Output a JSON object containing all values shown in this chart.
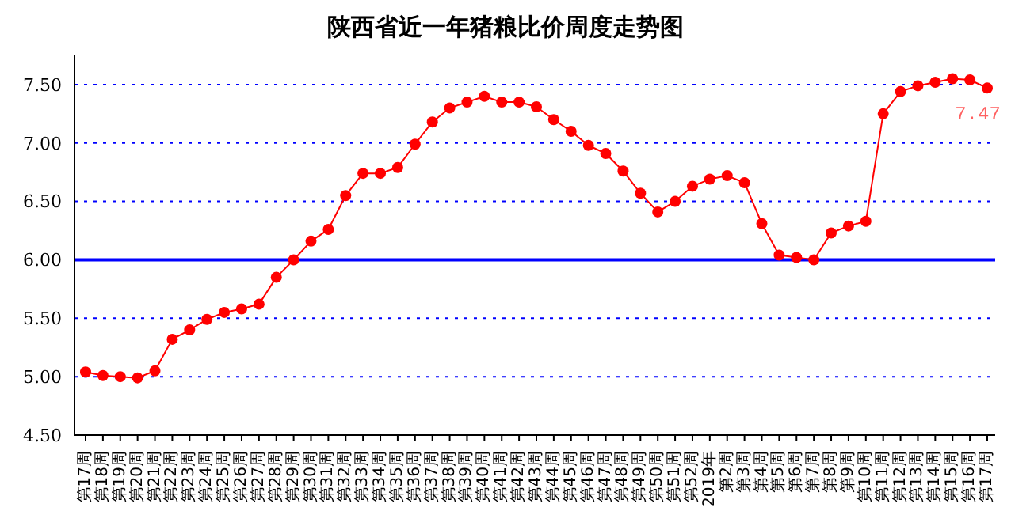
{
  "chart_data": {
    "type": "line",
    "title": "陕西省近一年猪粮比价周度走势图",
    "categories": [
      "第17周",
      "第18周",
      "第19周",
      "第20周",
      "第21周",
      "第22周",
      "第23周",
      "第24周",
      "第25周",
      "第26周",
      "第27周",
      "第28周",
      "第29周",
      "第30周",
      "第31周",
      "第32周",
      "第33周",
      "第34周",
      "第35周",
      "第36周",
      "第37周",
      "第38周",
      "第39周",
      "第40周",
      "第41周",
      "第42周",
      "第43周",
      "第44周",
      "第45周",
      "第46周",
      "第47周",
      "第48周",
      "第49周",
      "第50周",
      "第51周",
      "第52周",
      "2019年",
      "第2周",
      "第3周",
      "第4周",
      "第5周",
      "第6周",
      "第7周",
      "第8周",
      "第9周",
      "第10周",
      "第11周",
      "第12周",
      "第13周",
      "第14周",
      "第15周",
      "第16周",
      "第17周"
    ],
    "series": [
      {
        "color": "#ff0000",
        "values": [
          5.04,
          5.01,
          5.0,
          4.99,
          5.05,
          5.32,
          5.4,
          5.49,
          5.55,
          5.58,
          5.62,
          5.85,
          6.0,
          6.16,
          6.26,
          6.55,
          6.74,
          6.74,
          6.79,
          6.99,
          7.18,
          7.3,
          7.35,
          7.4,
          7.35,
          7.35,
          7.31,
          7.2,
          7.1,
          6.98,
          6.91,
          6.76,
          6.57,
          6.41,
          6.5,
          6.63,
          6.69,
          6.72,
          6.66,
          6.31,
          6.04,
          6.02,
          6.0,
          6.23,
          6.29,
          6.33,
          7.25,
          7.44,
          7.49,
          7.52,
          7.55,
          7.54,
          7.47
        ],
        "value_labels": [
          null,
          null,
          null,
          null,
          null,
          null,
          null,
          null,
          null,
          null,
          null,
          null,
          null,
          null,
          null,
          null,
          null,
          null,
          null,
          null,
          null,
          null,
          null,
          null,
          null,
          null,
          null,
          null,
          null,
          null,
          null,
          null,
          null,
          null,
          null,
          null,
          null,
          null,
          null,
          null,
          null,
          null,
          null,
          null,
          null,
          null,
          null,
          null,
          null,
          null,
          null,
          null,
          "7.47"
        ]
      }
    ],
    "ylim": [
      4.5,
      7.75
    ],
    "yticks": [
      {
        "value": 4.5,
        "label": "4.50"
      },
      {
        "value": 5,
        "label": "5.00"
      },
      {
        "value": 5.5,
        "label": "5.50"
      },
      {
        "value": 6,
        "label": "6.00"
      },
      {
        "value": 6.5,
        "label": "6.50"
      },
      {
        "value": 7,
        "label": "7.00"
      },
      {
        "value": 7.5,
        "label": "7.50"
      }
    ],
    "ref_lines": [
      {
        "axis": "y",
        "value": 6,
        "color": "#0000ff"
      }
    ],
    "grid": "y",
    "marker": "circle",
    "line_style": "solid"
  }
}
